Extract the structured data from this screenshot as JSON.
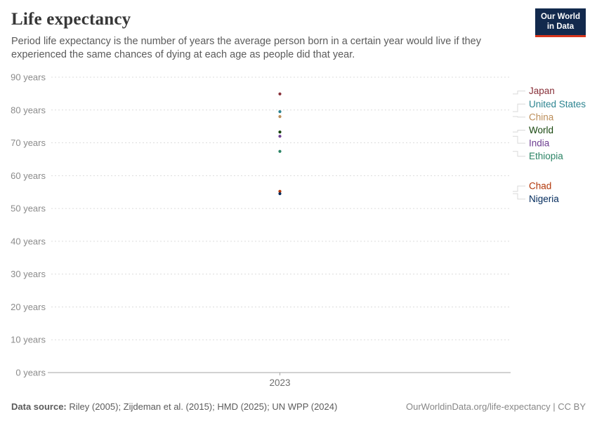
{
  "logo": {
    "line1": "Our World",
    "line2": "in Data"
  },
  "header": {
    "title": "Life expectancy",
    "subtitle": "Period life expectancy is the number of years the average person born in a certain year would live if they experienced the same chances of dying at each age as people did that year."
  },
  "chart_data": {
    "type": "scatter",
    "title": "Life expectancy",
    "x": [
      2023
    ],
    "x_tick_label": "2023",
    "xlabel": "",
    "ylabel": "",
    "ylim": [
      0,
      90
    ],
    "ytick_step": 10,
    "ytick_suffix": " years",
    "grid": true,
    "legend_position": "right",
    "series": [
      {
        "name": "Japan",
        "year": 2023,
        "value": 84.9,
        "color": "#883039"
      },
      {
        "name": "United States",
        "year": 2023,
        "value": 79.5,
        "color": "#2c8490"
      },
      {
        "name": "China",
        "year": 2023,
        "value": 78.0,
        "color": "#bc8e5a"
      },
      {
        "name": "World",
        "year": 2023,
        "value": 73.3,
        "color": "#18470f"
      },
      {
        "name": "India",
        "year": 2023,
        "value": 72.0,
        "color": "#6d3e91"
      },
      {
        "name": "Ethiopia",
        "year": 2023,
        "value": 67.4,
        "color": "#2c8465"
      },
      {
        "name": "Chad",
        "year": 2023,
        "value": 55.2,
        "color": "#b13507"
      },
      {
        "name": "Nigeria",
        "year": 2023,
        "value": 54.5,
        "color": "#00295b"
      }
    ]
  },
  "footer": {
    "source_label": "Data source:",
    "source_text": " Riley (2005); Zijdeman et al. (2015); HMD (2025); UN WPP (2024)",
    "rights": "OurWorldinData.org/life-expectancy | CC BY"
  }
}
